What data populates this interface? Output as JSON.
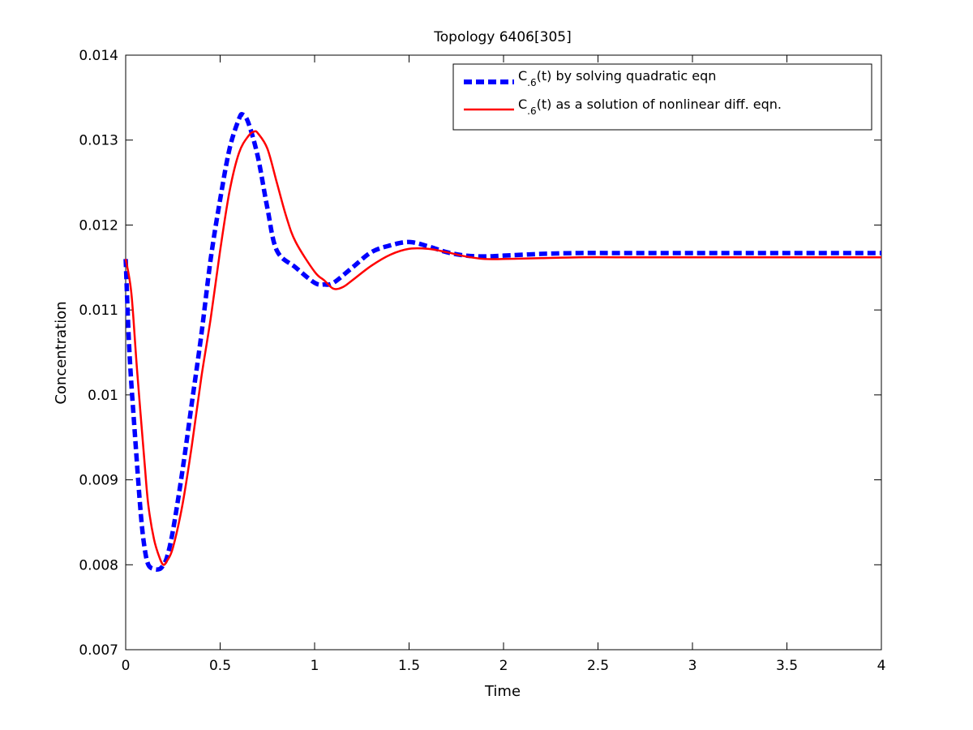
{
  "chart_data": {
    "type": "line",
    "title": "Topology 6406[305]",
    "xlabel": "Time",
    "ylabel": "Concentration",
    "xlim": [
      0,
      4
    ],
    "ylim": [
      0.007,
      0.014
    ],
    "xticks": [
      0,
      0.5,
      1,
      1.5,
      2,
      2.5,
      3,
      3.5,
      4
    ],
    "xtick_labels": [
      "0",
      "0.5",
      "1",
      "1.5",
      "2",
      "2.5",
      "3",
      "3.5",
      "4"
    ],
    "yticks": [
      0.007,
      0.008,
      0.009,
      0.01,
      0.011,
      0.012,
      0.013,
      0.014
    ],
    "ytick_labels": [
      "0.007",
      "0.008",
      "0.009",
      "0.01",
      "0.011",
      "0.012",
      "0.013",
      "0.014"
    ],
    "grid": false,
    "legend_position": "top-right",
    "series": [
      {
        "legend_main": "C",
        "legend_sub": ".6",
        "legend_rest": "(t) by solving quadratic eqn",
        "color": "#0000ff",
        "style": "dashed",
        "x": [
          0,
          0.02,
          0.05,
          0.08,
          0.1,
          0.12,
          0.15,
          0.18,
          0.2,
          0.22,
          0.25,
          0.3,
          0.35,
          0.4,
          0.45,
          0.5,
          0.55,
          0.6,
          0.62,
          0.65,
          0.7,
          0.75,
          0.8,
          0.9,
          1.0,
          1.05,
          1.1,
          1.2,
          1.3,
          1.4,
          1.5,
          1.6,
          1.7,
          1.8,
          1.9,
          2.0,
          2.2,
          2.4,
          2.6,
          3.0,
          3.5,
          4.0
        ],
        "y": [
          0.0116,
          0.0105,
          0.0095,
          0.0086,
          0.0082,
          0.008,
          0.00795,
          0.00795,
          0.008,
          0.0081,
          0.0084,
          0.0091,
          0.0099,
          0.0107,
          0.0116,
          0.0123,
          0.0129,
          0.01325,
          0.0133,
          0.0132,
          0.0128,
          0.0122,
          0.0117,
          0.0115,
          0.01132,
          0.0113,
          0.01132,
          0.0115,
          0.01168,
          0.01176,
          0.0118,
          0.01175,
          0.01168,
          0.01164,
          0.01163,
          0.01164,
          0.01166,
          0.01167,
          0.01167,
          0.01167,
          0.01167,
          0.01167
        ]
      },
      {
        "legend_main": "C",
        "legend_sub": ".6",
        "legend_rest": "(t) as a solution of nonlinear diff. eqn.",
        "color": "#ff0000",
        "style": "solid",
        "x": [
          0,
          0.03,
          0.06,
          0.1,
          0.12,
          0.15,
          0.18,
          0.2,
          0.22,
          0.25,
          0.3,
          0.35,
          0.4,
          0.45,
          0.5,
          0.55,
          0.6,
          0.65,
          0.68,
          0.7,
          0.75,
          0.8,
          0.85,
          0.9,
          1.0,
          1.05,
          1.1,
          1.15,
          1.2,
          1.3,
          1.4,
          1.5,
          1.6,
          1.7,
          1.8,
          1.9,
          2.0,
          2.2,
          2.4,
          2.6,
          3.0,
          3.5,
          4.0
        ],
        "y": [
          0.0116,
          0.0112,
          0.0103,
          0.0092,
          0.0087,
          0.0083,
          0.00808,
          0.008,
          0.00805,
          0.0082,
          0.0087,
          0.0094,
          0.0102,
          0.0109,
          0.0117,
          0.0124,
          0.01285,
          0.01305,
          0.0131,
          0.01308,
          0.0129,
          0.0125,
          0.0121,
          0.0118,
          0.01145,
          0.01135,
          0.01125,
          0.01127,
          0.01135,
          0.01152,
          0.01165,
          0.01172,
          0.01172,
          0.01168,
          0.01163,
          0.0116,
          0.0116,
          0.01161,
          0.01162,
          0.01162,
          0.01162,
          0.01162,
          0.01162
        ]
      }
    ]
  }
}
